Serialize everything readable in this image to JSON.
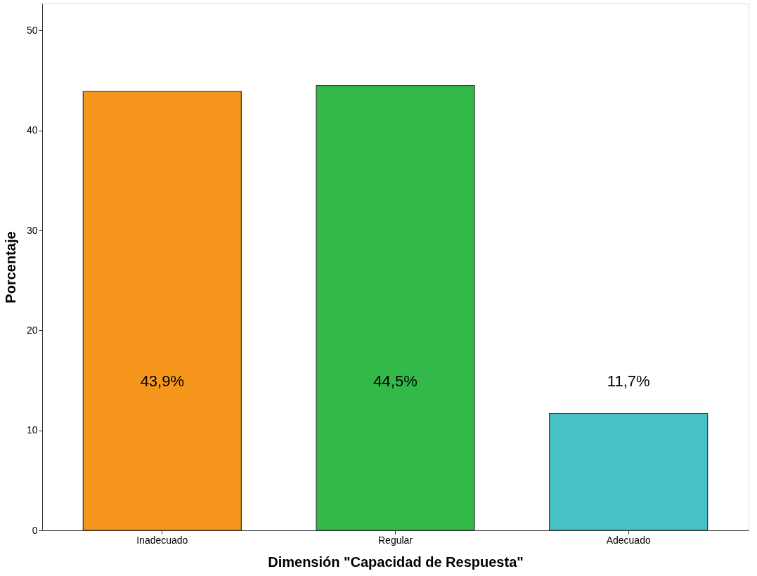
{
  "chart_data": {
    "type": "bar",
    "xlabel": "Dimensión \"Capacidad de Respuesta\"",
    "ylabel": "Porcentaje",
    "categories": [
      "Inadecuado",
      "Regular",
      "Adecuado"
    ],
    "values": [
      43.9,
      44.5,
      11.7
    ],
    "colors": [
      "#f7961d",
      "#33b84a",
      "#48c1c6"
    ],
    "value_labels": [
      "43,9%",
      "44,5%",
      "11,7%"
    ],
    "ylim": [
      0,
      52.7
    ],
    "yticks": [
      0,
      10,
      20,
      30,
      40,
      50
    ],
    "grid": false,
    "legend": false
  }
}
